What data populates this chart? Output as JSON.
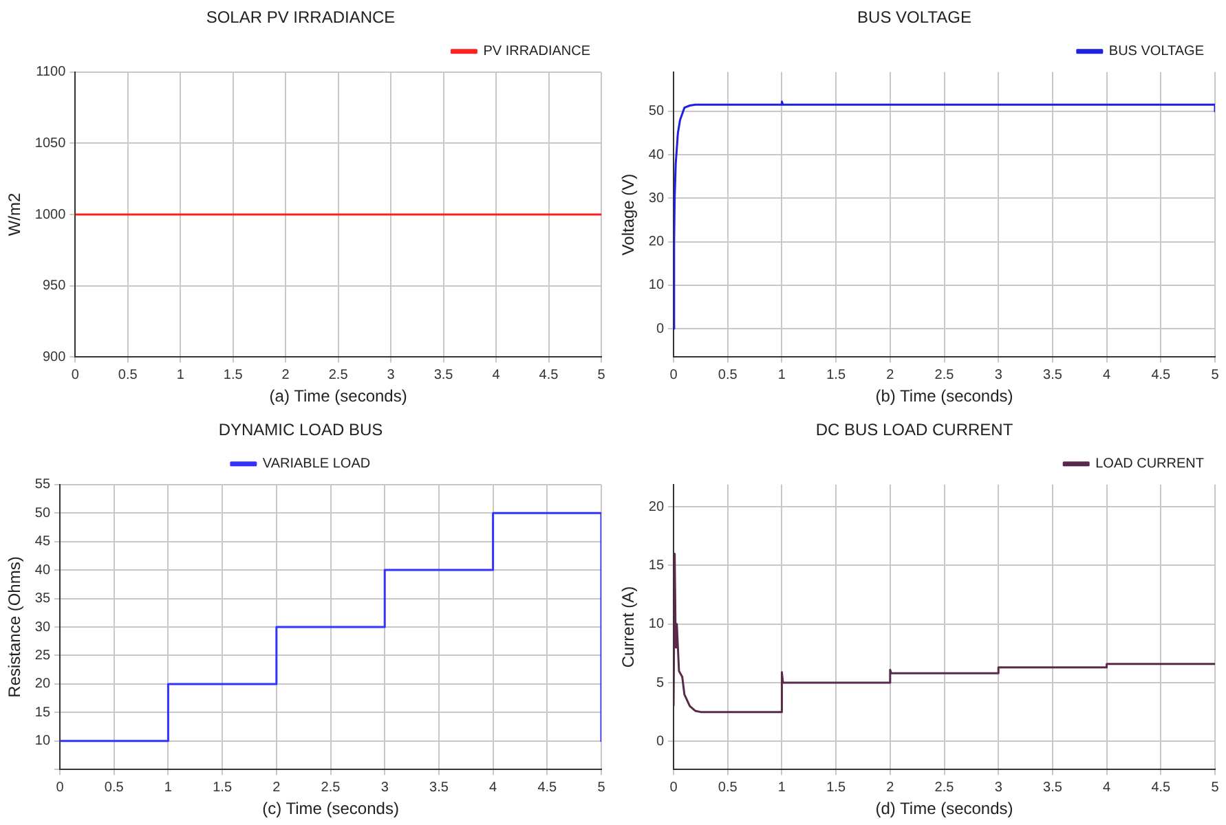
{
  "chart_data": [
    {
      "type": "line",
      "title": "SOLAR PV IRRADIANCE",
      "xlabel": "(a) Time (seconds)",
      "ylabel": "W/m2",
      "xlim": [
        0,
        5
      ],
      "xticks": [
        0,
        0.5,
        1,
        1.5,
        2,
        2.5,
        3,
        3.5,
        4,
        4.5,
        5
      ],
      "ylim": [
        900,
        1100
      ],
      "yticks": [
        900,
        950,
        1000,
        1050,
        1100
      ],
      "grid": true,
      "legend": "top right",
      "series": [
        {
          "name": "PV IRRADIANCE",
          "color": "#ff2020",
          "x": [
            0,
            5
          ],
          "values": [
            1000,
            1000
          ]
        }
      ]
    },
    {
      "type": "line",
      "title": "BUS VOLTAGE",
      "xlabel": "(b) Time (seconds)",
      "ylabel": "Voltage (V)",
      "xlim": [
        0,
        5
      ],
      "xticks": [
        0,
        0.5,
        1,
        1.5,
        2,
        2.5,
        3,
        3.5,
        4,
        4.5,
        5
      ],
      "ylim": [
        -6.5,
        59
      ],
      "yticks": [
        0,
        10,
        20,
        30,
        40,
        50
      ],
      "grid": true,
      "legend": "top right",
      "series": [
        {
          "name": "BUS VOLTAGE",
          "color": "#2020e0",
          "x": [
            0,
            0.005,
            0.01,
            0.02,
            0.04,
            0.06,
            0.1,
            0.15,
            0.2,
            1,
            1,
            1.01,
            5,
            5
          ],
          "values": [
            0,
            20,
            30,
            38,
            45,
            48,
            50.8,
            51.3,
            51.5,
            51.5,
            52.2,
            51.5,
            51.5,
            50
          ]
        }
      ]
    },
    {
      "type": "line",
      "title": "DYNAMIC LOAD BUS",
      "xlabel": "(c) Time (seconds)",
      "ylabel": "Resistance (Ohms)",
      "xlim": [
        0,
        5
      ],
      "xticks": [
        0,
        0.5,
        1,
        1.5,
        2,
        2.5,
        3,
        3.5,
        4,
        4.5,
        5
      ],
      "ylim": [
        5,
        55
      ],
      "yticks": [
        {
          "value": 5,
          "label": null
        },
        10,
        15,
        20,
        25,
        30,
        35,
        40,
        45,
        50,
        55
      ],
      "grid": true,
      "legend": "top",
      "series": [
        {
          "name": "VARIABLE LOAD",
          "color": "#3333ff",
          "x": [
            0,
            1,
            1,
            2,
            2,
            3,
            3,
            4,
            4,
            5,
            5
          ],
          "values": [
            10,
            10,
            20,
            20,
            30,
            30,
            40,
            40,
            50,
            50,
            10
          ]
        }
      ]
    },
    {
      "type": "line",
      "title": "DC BUS LOAD CURRENT",
      "xlabel": "(d) Time (seconds)",
      "ylabel": "Current (A)",
      "xlim": [
        0,
        5
      ],
      "xticks": [
        0,
        0.5,
        1,
        1.5,
        2,
        2.5,
        3,
        3.5,
        4,
        4.5,
        5
      ],
      "ylim": [
        -2.4,
        21.9
      ],
      "yticks": [
        0,
        5,
        10,
        15,
        20
      ],
      "grid": true,
      "legend": "top right",
      "series": [
        {
          "name": "LOAD CURRENT",
          "color": "#5a2a4a",
          "x": [
            0,
            0.01,
            0.02,
            0.03,
            0.05,
            0.08,
            0.1,
            0.15,
            0.2,
            0.25,
            1,
            1,
            1.01,
            2,
            2,
            2.01,
            3,
            3,
            4,
            4,
            5
          ],
          "values": [
            3,
            16,
            8,
            10,
            6,
            5.5,
            4,
            3,
            2.6,
            2.5,
            2.5,
            5.9,
            5,
            5,
            6.1,
            5.8,
            5.8,
            6.3,
            6.3,
            6.6,
            6.6
          ]
        }
      ]
    }
  ]
}
